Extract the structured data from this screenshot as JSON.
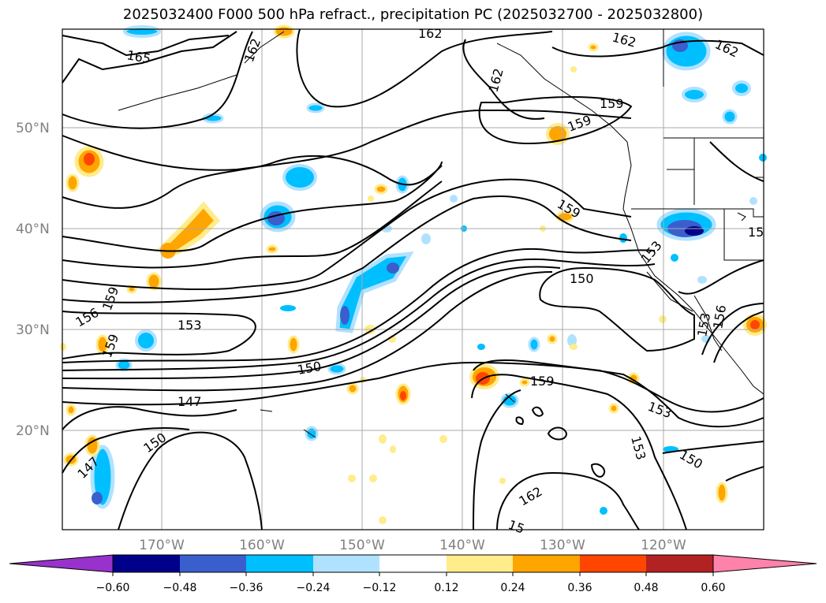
{
  "title": "2025032400 F000 500 hPa refract., precipitation PC (2025032700 - 2025032800)",
  "map": {
    "lat_labels": [
      "50°N",
      "40°N",
      "30°N",
      "20°N"
    ],
    "lon_labels": [
      "170°W",
      "160°W",
      "150°W",
      "140°W",
      "130°W",
      "120°W"
    ],
    "contour_labels": [
      {
        "text": "165",
        "rot": 10
      },
      {
        "text": "162",
        "rot": -70
      },
      {
        "text": "162",
        "rot": 0
      },
      {
        "text": "162",
        "rot": 15
      },
      {
        "text": "162",
        "rot": 25
      },
      {
        "text": "162",
        "rot": -75
      },
      {
        "text": "159",
        "rot": 0
      },
      {
        "text": "159",
        "rot": -20
      },
      {
        "text": "159",
        "rot": 30
      },
      {
        "text": "153",
        "rot": -50
      },
      {
        "text": "15",
        "rot": 0
      },
      {
        "text": "150",
        "rot": 0
      },
      {
        "text": "159",
        "rot": -70
      },
      {
        "text": "156",
        "rot": -30
      },
      {
        "text": "159",
        "rot": -70
      },
      {
        "text": "153",
        "rot": 0
      },
      {
        "text": "150",
        "rot": -10
      },
      {
        "text": "147",
        "rot": 0
      },
      {
        "text": "153",
        "rot": -80
      },
      {
        "text": "156",
        "rot": -80
      },
      {
        "text": "159",
        "rot": 0
      },
      {
        "text": "153",
        "rot": 20
      },
      {
        "text": "153",
        "rot": 75
      },
      {
        "text": "150",
        "rot": 30
      },
      {
        "text": "150",
        "rot": -35
      },
      {
        "text": "147",
        "rot": -45
      },
      {
        "text": "162",
        "rot": -30
      },
      {
        "text": "15",
        "rot": 20
      }
    ]
  },
  "colorbar": {
    "ticks": [
      "−0.60",
      "−0.48",
      "−0.36",
      "−0.24",
      "−0.12",
      "0.12",
      "0.24",
      "0.36",
      "0.48",
      "0.60"
    ],
    "colors": [
      "#9932cc",
      "#00008b",
      "#3a5fcd",
      "#00bfff",
      "#b0e2ff",
      "#ffffff",
      "#ffec8b",
      "#ffa500",
      "#ff4500",
      "#b22222",
      "#ff82ab"
    ]
  }
}
